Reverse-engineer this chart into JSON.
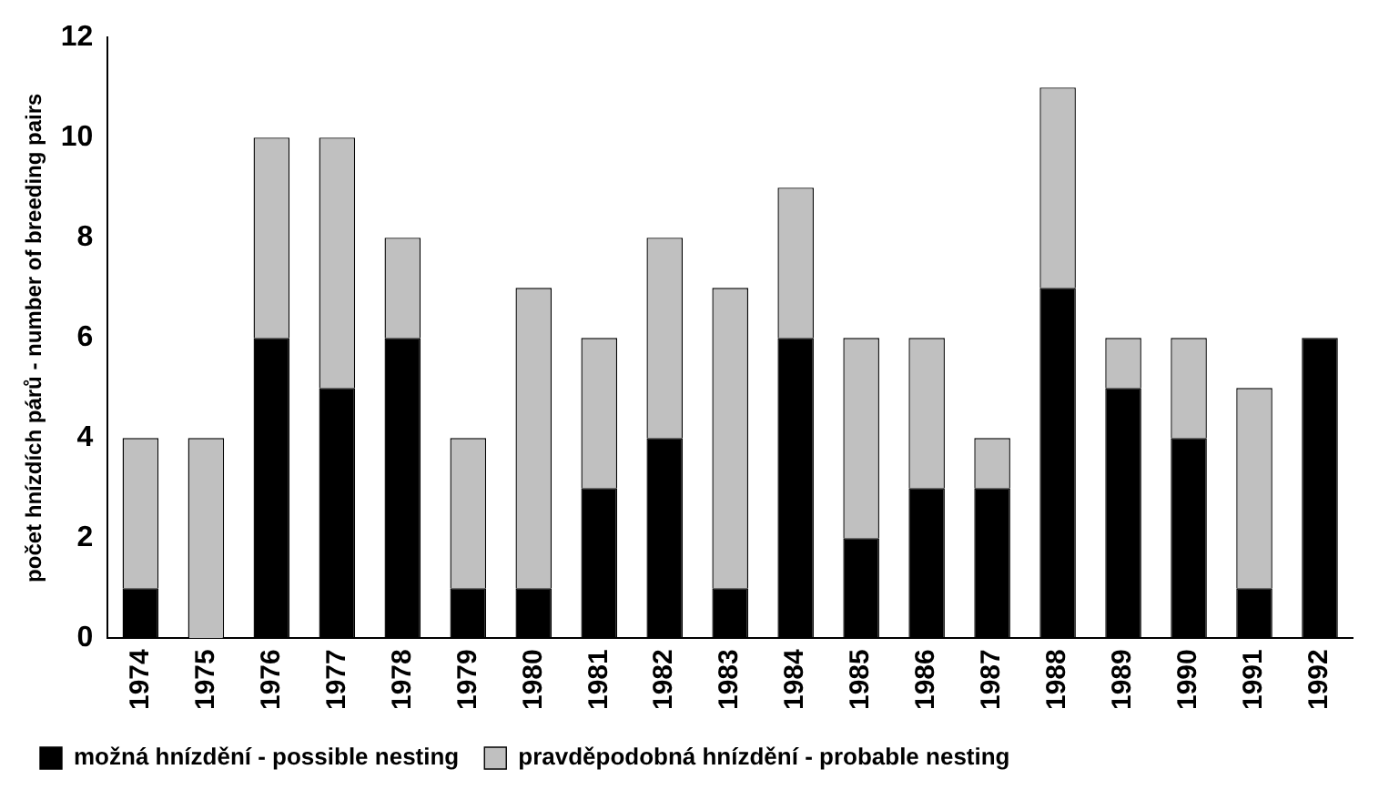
{
  "chart_data": {
    "type": "bar",
    "stacked": true,
    "ylabel": "počet hnízdích párů - number of breeding pairs",
    "categories": [
      "1974",
      "1975",
      "1976",
      "1977",
      "1978",
      "1979",
      "1980",
      "1981",
      "1982",
      "1983",
      "1984",
      "1985",
      "1986",
      "1987",
      "1988",
      "1989",
      "1990",
      "1991",
      "1992"
    ],
    "series": [
      {
        "name": "možná hnízdění - possible nesting",
        "color": "#000000",
        "values": [
          1,
          0,
          6,
          5,
          6,
          1,
          1,
          3,
          4,
          1,
          6,
          2,
          3,
          3,
          7,
          5,
          4,
          1,
          6
        ]
      },
      {
        "name": "pravděpodobná hnízdění - probable nesting",
        "color": "#c0c0c0",
        "values": [
          3,
          4,
          4,
          5,
          2,
          3,
          6,
          3,
          4,
          6,
          3,
          4,
          3,
          1,
          4,
          1,
          2,
          4,
          0
        ]
      }
    ],
    "ylim": [
      0,
      12
    ],
    "yticks": [
      0,
      2,
      4,
      6,
      8,
      10,
      12
    ],
    "grid": false,
    "legend": "bottom"
  }
}
